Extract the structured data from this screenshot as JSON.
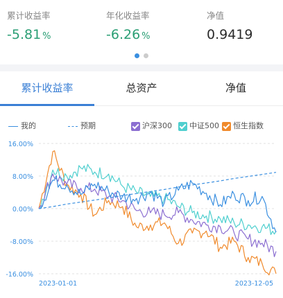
{
  "summary": {
    "cumulative": {
      "label": "累计收益率",
      "value": "-5.81",
      "unit": "%"
    },
    "annualized": {
      "label": "年化收益率",
      "value": "-6.26",
      "unit": "%"
    },
    "nav": {
      "label": "净值",
      "value": "0.9419"
    }
  },
  "pager": {
    "pages": 2,
    "active": 0
  },
  "tabs": [
    "累计收益率",
    "总资产",
    "净值"
  ],
  "legend": {
    "mine": "我的",
    "expected": "预期",
    "csi300": "沪深300",
    "csi500": "中证500",
    "hsi": "恒生指数"
  },
  "colors": {
    "mine": "#3a8fe0",
    "expected": "#3a8fe0",
    "csi300": "#8c6fd1",
    "csi500": "#4fcfcf",
    "hsi": "#f08a2c",
    "negative": "#2a9e74",
    "accent": "#3a7fd5"
  },
  "chart_data": {
    "type": "line",
    "ylabel_ticks": [
      "16.00%",
      "8.00%",
      "0.00%",
      "-8.00%",
      "-16.00%"
    ],
    "ylim": [
      -16,
      16
    ],
    "x_start_label": "2023-01-01",
    "x_end_label": "2023-12-05",
    "x": [
      "2023-01-01",
      "2023-01-20",
      "2023-02-10",
      "2023-03-01",
      "2023-03-20",
      "2023-04-10",
      "2023-05-01",
      "2023-05-20",
      "2023-06-10",
      "2023-07-01",
      "2023-07-20",
      "2023-08-10",
      "2023-09-01",
      "2023-09-20",
      "2023-10-10",
      "2023-11-01",
      "2023-11-20",
      "2023-12-05"
    ],
    "series": [
      {
        "name": "我的",
        "values": [
          0,
          7.0,
          5.8,
          3.5,
          6.0,
          4.2,
          3.0,
          2.5,
          4.0,
          1.5,
          4.5,
          6.2,
          3.8,
          1.0,
          3.5,
          2.0,
          3.0,
          -5.8
        ]
      },
      {
        "name": "预期",
        "style": "dashed",
        "values": [
          0,
          0.5,
          1.1,
          1.6,
          2.1,
          2.6,
          3.2,
          3.7,
          4.2,
          4.7,
          5.3,
          5.8,
          6.3,
          6.8,
          7.4,
          7.9,
          8.4,
          8.9
        ]
      },
      {
        "name": "沪深300",
        "values": [
          0,
          8.5,
          6.0,
          5.0,
          4.8,
          3.0,
          2.0,
          -0.5,
          -1.0,
          -1.5,
          -1.0,
          -2.8,
          -4.0,
          -4.5,
          -6.0,
          -7.5,
          -8.5,
          -10.5
        ]
      },
      {
        "name": "中证500",
        "values": [
          0,
          9.5,
          8.0,
          10.0,
          9.0,
          8.5,
          5.5,
          4.0,
          3.0,
          2.5,
          0.5,
          -1.0,
          -1.8,
          -2.5,
          -3.5,
          -4.0,
          -4.5,
          -5.5
        ]
      },
      {
        "name": "恒生指数",
        "values": [
          0,
          14.0,
          6.0,
          3.5,
          -1.5,
          2.0,
          0.5,
          -4.5,
          -4.0,
          -3.5,
          -8.5,
          -6.0,
          -5.5,
          -9.5,
          -8.0,
          -12.0,
          -13.5,
          -16.0
        ]
      }
    ],
    "grid": true
  }
}
